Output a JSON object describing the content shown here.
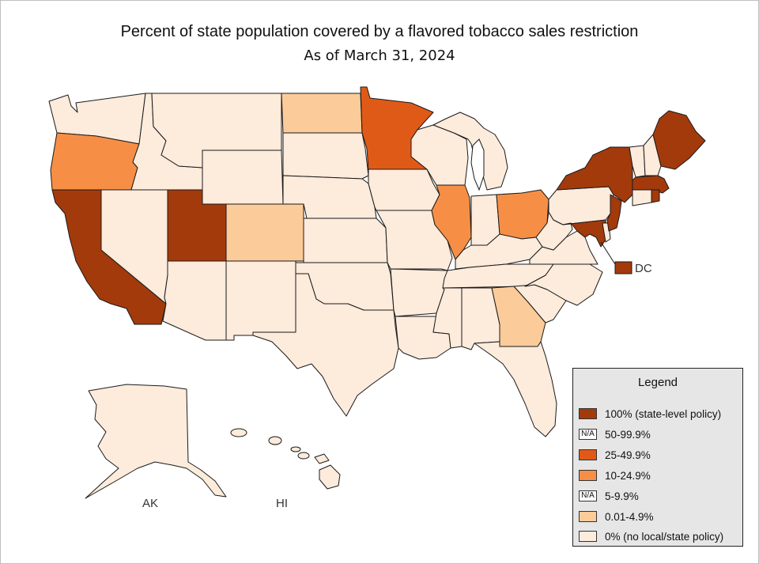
{
  "title": "Percent of state population covered by a flavored tobacco sales restriction",
  "subtitle": "As of March 31, 2024",
  "colors": {
    "c100": "#a33a0c",
    "c25": "#e05a17",
    "c10": "#f68f45",
    "c001": "#fbcb99",
    "c0": "#fdebdc"
  },
  "map_labels": {
    "dc": "DC",
    "ak": "AK",
    "hi": "HI"
  },
  "legend": {
    "title": "Legend",
    "items": [
      {
        "label": "100% (state-level policy)",
        "color": "#a33a0c",
        "swatch_text": ""
      },
      {
        "label": "50-99.9%",
        "color": "#ffffff",
        "swatch_text": "N/A"
      },
      {
        "label": "25-49.9%",
        "color": "#e05a17",
        "swatch_text": ""
      },
      {
        "label": "10-24.9%",
        "color": "#f68f45",
        "swatch_text": ""
      },
      {
        "label": "5-9.9%",
        "color": "#ffffff",
        "swatch_text": "N/A"
      },
      {
        "label": "0.01-4.9%",
        "color": "#fbcb99",
        "swatch_text": ""
      },
      {
        "label": "0% (no local/state policy)",
        "color": "#fdebdc",
        "swatch_text": ""
      }
    ]
  },
  "states": [
    {
      "name": "Washington",
      "cat": "c0"
    },
    {
      "name": "Oregon",
      "cat": "c10"
    },
    {
      "name": "California",
      "cat": "c100"
    },
    {
      "name": "Nevada",
      "cat": "c0"
    },
    {
      "name": "Idaho",
      "cat": "c0"
    },
    {
      "name": "Montana",
      "cat": "c0"
    },
    {
      "name": "Wyoming",
      "cat": "c0"
    },
    {
      "name": "Utah",
      "cat": "c100"
    },
    {
      "name": "Arizona",
      "cat": "c0"
    },
    {
      "name": "Colorado",
      "cat": "c001"
    },
    {
      "name": "New Mexico",
      "cat": "c0"
    },
    {
      "name": "North Dakota",
      "cat": "c001"
    },
    {
      "name": "South Dakota",
      "cat": "c0"
    },
    {
      "name": "Nebraska",
      "cat": "c0"
    },
    {
      "name": "Kansas",
      "cat": "c0"
    },
    {
      "name": "Oklahoma",
      "cat": "c0"
    },
    {
      "name": "Texas",
      "cat": "c0"
    },
    {
      "name": "Minnesota",
      "cat": "c25"
    },
    {
      "name": "Iowa",
      "cat": "c0"
    },
    {
      "name": "Missouri",
      "cat": "c0"
    },
    {
      "name": "Arkansas",
      "cat": "c0"
    },
    {
      "name": "Louisiana",
      "cat": "c0"
    },
    {
      "name": "Wisconsin",
      "cat": "c0"
    },
    {
      "name": "Illinois",
      "cat": "c10"
    },
    {
      "name": "Michigan",
      "cat": "c0"
    },
    {
      "name": "Indiana",
      "cat": "c0"
    },
    {
      "name": "Ohio",
      "cat": "c10"
    },
    {
      "name": "Kentucky",
      "cat": "c0"
    },
    {
      "name": "Tennessee",
      "cat": "c0"
    },
    {
      "name": "Mississippi",
      "cat": "c0"
    },
    {
      "name": "Alabama",
      "cat": "c0"
    },
    {
      "name": "Georgia",
      "cat": "c001"
    },
    {
      "name": "Florida",
      "cat": "c0"
    },
    {
      "name": "South Carolina",
      "cat": "c0"
    },
    {
      "name": "North Carolina",
      "cat": "c0"
    },
    {
      "name": "Virginia",
      "cat": "c0"
    },
    {
      "name": "West Virginia",
      "cat": "c0"
    },
    {
      "name": "Pennsylvania",
      "cat": "c0"
    },
    {
      "name": "New York",
      "cat": "c100"
    },
    {
      "name": "New Jersey",
      "cat": "c100"
    },
    {
      "name": "Maryland",
      "cat": "c100"
    },
    {
      "name": "Delaware",
      "cat": "c0"
    },
    {
      "name": "Vermont",
      "cat": "c0"
    },
    {
      "name": "New Hampshire",
      "cat": "c0"
    },
    {
      "name": "Maine",
      "cat": "c100"
    },
    {
      "name": "Massachusetts",
      "cat": "c100"
    },
    {
      "name": "Rhode Island",
      "cat": "c100"
    },
    {
      "name": "Connecticut",
      "cat": "c0"
    },
    {
      "name": "District of Columbia",
      "cat": "c100"
    },
    {
      "name": "Alaska",
      "cat": "c0"
    },
    {
      "name": "Hawaii",
      "cat": "c0"
    }
  ]
}
